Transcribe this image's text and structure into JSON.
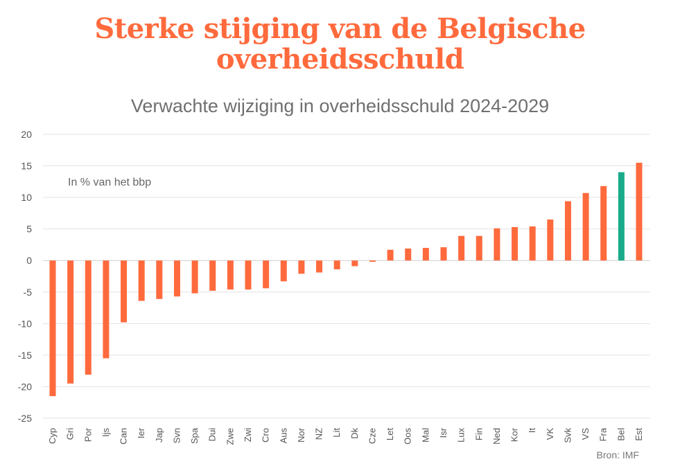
{
  "chart_data": {
    "type": "bar",
    "title": "Sterke stijging van de Belgische overheidsschuld",
    "subtitle": "Verwachte wijziging in overheidsschuld 2024-2029",
    "unit_note": "In % van het bbp",
    "source": "Bron: IMF",
    "ylim": [
      -25,
      20
    ],
    "yticks": [
      20,
      15,
      10,
      5,
      0,
      -5,
      -10,
      -15,
      -20,
      -25
    ],
    "grid": true,
    "categories": [
      "Cyp",
      "Gri",
      "Por",
      "Ijs",
      "Can",
      "Ier",
      "Jap",
      "Svn",
      "Spa",
      "Dui",
      "Zwe",
      "Zwi",
      "Cro",
      "Aus",
      "Nor",
      "NZ",
      "Lit",
      "Dk",
      "Cze",
      "Let",
      "Oos",
      "Mal",
      "Isr",
      "Lux",
      "Fin",
      "Ned",
      "Kor",
      "It",
      "VK",
      "Svk",
      "VS",
      "Fra",
      "Bel",
      "Est"
    ],
    "values": [
      -21.5,
      -19.5,
      -18.1,
      -15.5,
      -9.8,
      -6.4,
      -6.1,
      -5.7,
      -5.2,
      -4.8,
      -4.6,
      -4.6,
      -4.4,
      -3.3,
      -2.1,
      -1.9,
      -1.4,
      -0.9,
      -0.2,
      1.7,
      1.9,
      2.0,
      2.1,
      3.9,
      3.9,
      5.1,
      5.3,
      5.4,
      6.5,
      9.4,
      10.7,
      11.8,
      14.0,
      15.5
    ],
    "colors": {
      "default": "#ff6a3d",
      "highlight": "#1aab8a",
      "highlight_category": "Bel",
      "grid": "#e3e3e3"
    }
  }
}
